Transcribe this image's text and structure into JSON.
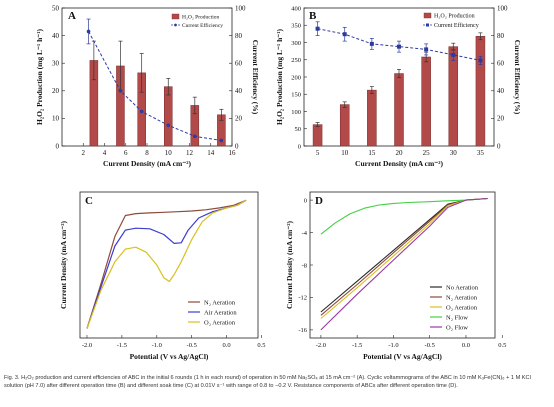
{
  "colors": {
    "bar": "#b24a4a",
    "bar_stroke": "#7a2a2a",
    "efficiency": "#2e3a9e",
    "no_aeration": "#2b2b2b",
    "n2_aeration": "#8e4a3a",
    "air_aeration": "#3c3ccf",
    "o2_aeration": "#d8c020",
    "n2_flow": "#44d044",
    "o2_flow": "#9a3aa6"
  },
  "caption": "Fig. 3. H₂O₂ production and current efficiencies of ABC in the initial 6 rounds (1 h in each round) of operation in 50 mM Na₂SO₄ at 15 mA cm⁻² (A). Cyclic voltammograms of the ABC in 10 mM K₃Fe(CN)₆ + 1 M KCl solution (pH 7.0) after different operation time (B) and different soak time (C) at 0.01V s⁻¹ with range of 0.8 to −0.2 V. Resistance components of ABCs after different operation time (D).",
  "chart_data": [
    {
      "panel": "A",
      "type": "bar",
      "title": "A",
      "xlabel": "Current Density (mA cm⁻²)",
      "ylabel": "H₂O₂ Production (mg L⁻¹ h⁻¹)",
      "y2label": "Current Efficiency (%)",
      "xlim": [
        0,
        16
      ],
      "ylim": [
        0,
        50
      ],
      "y2lim": [
        0,
        100
      ],
      "xticks": [
        2,
        4,
        6,
        8,
        10,
        12,
        14,
        16
      ],
      "yticks": [
        0,
        10,
        20,
        30,
        40,
        50
      ],
      "y2ticks": [
        0,
        20,
        40,
        60,
        80,
        100
      ],
      "legend": [
        "H₂O₂ Production",
        "Current Efficiency"
      ],
      "legend_position": "top-right",
      "bars": {
        "x": [
          3,
          5.5,
          7.5,
          10,
          12.5,
          15
        ],
        "values": [
          31,
          29,
          26.5,
          21.5,
          14.7,
          11.3
        ],
        "errors": [
          7,
          9,
          7,
          3,
          3,
          2
        ]
      },
      "line": {
        "x": [
          2.5,
          5.5,
          7.5,
          10,
          12.5,
          15
        ],
        "values": [
          83,
          40,
          25,
          15,
          7,
          4
        ],
        "errors": [
          9,
          0,
          0,
          0,
          0,
          0
        ]
      }
    },
    {
      "panel": "B",
      "type": "bar",
      "title": "B",
      "xlabel": "Current Density (mA cm⁻²)",
      "ylabel": "H₂O₂ Production (mg L⁻¹ h⁻¹)",
      "y2label": "Current Efficiency (%)",
      "categories": [
        "5",
        "10",
        "15",
        "20",
        "25",
        "30",
        "35"
      ],
      "ylim": [
        0,
        400
      ],
      "y2lim": [
        0,
        100
      ],
      "yticks": [
        0,
        50,
        100,
        150,
        200,
        250,
        300,
        350,
        400
      ],
      "y2ticks": [
        0,
        20,
        40,
        60,
        80,
        100
      ],
      "legend": [
        "H₂O₂ Production",
        "Current Efficiency"
      ],
      "legend_position": "top-right",
      "bars": {
        "values": [
          62,
          120,
          162,
          210,
          258,
          288,
          318
        ],
        "errors": [
          6,
          8,
          10,
          12,
          14,
          10,
          10
        ]
      },
      "line": {
        "values": [
          85,
          81,
          74,
          72,
          70,
          66,
          62
        ],
        "errors": [
          5,
          5,
          4,
          4,
          4,
          4,
          3
        ]
      }
    },
    {
      "panel": "C",
      "type": "line",
      "title": "C",
      "xlabel": "Potential (V vs Ag/AgCl)",
      "ylabel": "Current Density (mA cm⁻²)",
      "xlim": [
        -2.1,
        0.45
      ],
      "xticks": [
        "-2.0",
        "-1.5",
        "-1.0",
        "-0.5",
        "0.0",
        "0.5"
      ],
      "legend_position": "bottom-right",
      "series": [
        {
          "name": "N₂ Aeration",
          "color_key": "n2_aeration",
          "x": [
            -2.0,
            -1.8,
            -1.6,
            -1.45,
            -1.3,
            -1.1,
            -0.9,
            -0.7,
            -0.5,
            -0.3,
            -0.1,
            0.1,
            0.28
          ],
          "y": [
            -19.0,
            -12.0,
            -4.5,
            -1.2,
            -0.9,
            -0.8,
            -0.7,
            -0.6,
            -0.5,
            -0.3,
            0.0,
            0.4,
            1.2
          ]
        },
        {
          "name": "Air Aeration",
          "color_key": "air_aeration",
          "x": [
            -2.0,
            -1.8,
            -1.6,
            -1.45,
            -1.3,
            -1.1,
            -0.9,
            -0.75,
            -0.65,
            -0.55,
            -0.4,
            -0.2,
            0.0,
            0.15,
            0.28
          ],
          "y": [
            -19.0,
            -12.5,
            -6.0,
            -3.5,
            -3.2,
            -3.3,
            -4.2,
            -5.6,
            -5.5,
            -3.5,
            -1.6,
            -0.6,
            0.0,
            0.4,
            1.2
          ]
        },
        {
          "name": "O₂ Aeration",
          "color_key": "o2_aeration",
          "x": [
            -2.0,
            -1.8,
            -1.6,
            -1.45,
            -1.3,
            -1.15,
            -1.0,
            -0.9,
            -0.82,
            -0.75,
            -0.65,
            -0.5,
            -0.35,
            -0.2,
            0.0,
            0.15,
            0.28
          ],
          "y": [
            -19.0,
            -13.0,
            -8.5,
            -6.5,
            -6.2,
            -7.0,
            -9.0,
            -11.0,
            -11.6,
            -10.5,
            -8.5,
            -5.0,
            -2.2,
            -0.8,
            0.0,
            0.4,
            1.2
          ]
        }
      ]
    },
    {
      "panel": "D",
      "type": "line",
      "title": "D",
      "xlabel": "Potential (V vs Ag/AgCl)",
      "ylabel": "Current Density (mA cm⁻²)",
      "xlim": [
        -2.15,
        0.4
      ],
      "ylim": [
        -17,
        1
      ],
      "xticks": [
        "-2.0",
        "-1.5",
        "-1.0",
        "-0.5",
        "0.0",
        "0.5"
      ],
      "yticks": [
        0,
        -4,
        -8,
        -12,
        -16
      ],
      "legend_position": "right",
      "series": [
        {
          "name": "No Aeration",
          "color_key": "no_aeration",
          "x": [
            -2.0,
            -1.5,
            -1.0,
            -0.5,
            -0.25,
            0.0,
            0.3
          ],
          "y": [
            -13.8,
            -10.0,
            -6.2,
            -2.4,
            -0.5,
            0.0,
            0.2
          ]
        },
        {
          "name": "N₂ Aeration",
          "color_key": "n2_aeration",
          "x": [
            -2.0,
            -1.5,
            -1.0,
            -0.5,
            -0.25,
            0.0,
            0.3
          ],
          "y": [
            -14.2,
            -10.4,
            -6.5,
            -2.6,
            -0.6,
            0.0,
            0.2
          ]
        },
        {
          "name": "O₂ Aeration",
          "color_key": "o2_aeration",
          "x": [
            -2.0,
            -1.5,
            -1.0,
            -0.5,
            -0.25,
            0.0,
            0.3
          ],
          "y": [
            -14.6,
            -10.8,
            -6.9,
            -2.9,
            -0.7,
            0.0,
            0.2
          ]
        },
        {
          "name": "N₂ Flow",
          "color_key": "n2_flow",
          "x": [
            -2.0,
            -1.8,
            -1.6,
            -1.4,
            -1.2,
            -1.0,
            -0.8,
            -0.5,
            -0.3,
            0.0,
            0.3
          ],
          "y": [
            -4.2,
            -2.8,
            -1.7,
            -1.0,
            -0.6,
            -0.4,
            -0.3,
            -0.2,
            -0.1,
            0.0,
            0.2
          ]
        },
        {
          "name": "O₂ Flow",
          "color_key": "o2_flow",
          "x": [
            -2.0,
            -1.5,
            -1.0,
            -0.5,
            -0.25,
            0.0,
            0.3
          ],
          "y": [
            -16.0,
            -11.6,
            -7.4,
            -3.2,
            -0.9,
            0.0,
            0.2
          ]
        }
      ]
    }
  ]
}
